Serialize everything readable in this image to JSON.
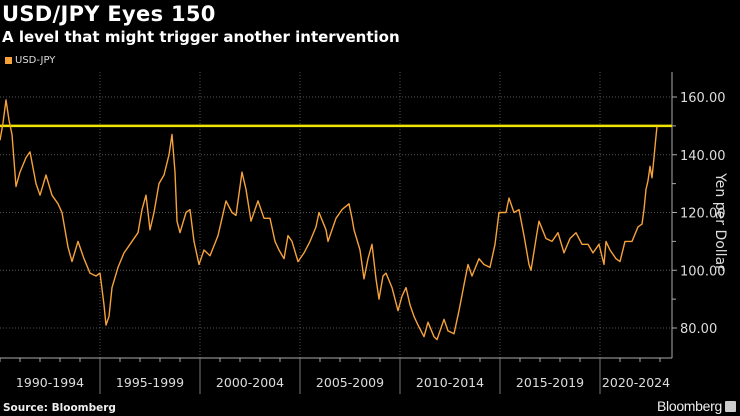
{
  "header": {
    "title": "USD/JPY Eyes 150",
    "subtitle": "A level that might trigger another intervention"
  },
  "footer": {
    "source": "Source: Bloomberg",
    "brand": "Bloomberg"
  },
  "chart_data": {
    "type": "line",
    "title": "USD/JPY Eyes 150",
    "subtitle": "A level that might trigger another intervention",
    "ylabel": "Yen per Dollar",
    "xlabel": "",
    "ylim": [
      70,
      168
    ],
    "xlim": [
      1990,
      2024
    ],
    "yticks": [
      "160.00",
      "140.00",
      "120.00",
      "100.00",
      "80.00"
    ],
    "ytick_values": [
      160,
      140,
      120,
      100,
      80
    ],
    "xtick_labels": [
      "1990-1994",
      "1995-1999",
      "2000-2004",
      "2005-2009",
      "2010-2014",
      "2015-2019",
      "2020-2024"
    ],
    "legend": {
      "position": "top-left",
      "entries": [
        "USD-JPY"
      ]
    },
    "grid": true,
    "colors": {
      "series": "#f5a23a",
      "reference": "#f0e400",
      "grid": "#555555",
      "axis": "#aaaaaa"
    },
    "reference_line": {
      "value": 150
    },
    "series": [
      {
        "name": "USD-JPY",
        "points": [
          [
            1990.0,
            145
          ],
          [
            1990.15,
            151
          ],
          [
            1990.3,
            159
          ],
          [
            1990.45,
            152
          ],
          [
            1990.6,
            147
          ],
          [
            1990.8,
            129
          ],
          [
            1991.0,
            134
          ],
          [
            1991.3,
            139
          ],
          [
            1991.5,
            141
          ],
          [
            1991.8,
            130
          ],
          [
            1992.0,
            126
          ],
          [
            1992.3,
            133
          ],
          [
            1992.6,
            126
          ],
          [
            1992.9,
            123
          ],
          [
            1993.1,
            120
          ],
          [
            1993.4,
            108
          ],
          [
            1993.6,
            103
          ],
          [
            1993.9,
            110
          ],
          [
            1994.2,
            104
          ],
          [
            1994.5,
            99
          ],
          [
            1994.8,
            98
          ],
          [
            1995.0,
            99
          ],
          [
            1995.2,
            88
          ],
          [
            1995.3,
            81
          ],
          [
            1995.45,
            84
          ],
          [
            1995.6,
            94
          ],
          [
            1995.9,
            101
          ],
          [
            1996.2,
            106
          ],
          [
            1996.5,
            109
          ],
          [
            1996.9,
            113
          ],
          [
            1997.1,
            121
          ],
          [
            1997.3,
            126
          ],
          [
            1997.5,
            114
          ],
          [
            1997.7,
            120
          ],
          [
            1997.95,
            130
          ],
          [
            1998.2,
            133
          ],
          [
            1998.45,
            140
          ],
          [
            1998.6,
            147
          ],
          [
            1998.75,
            134
          ],
          [
            1998.85,
            117
          ],
          [
            1999.0,
            113
          ],
          [
            1999.3,
            120
          ],
          [
            1999.5,
            121
          ],
          [
            1999.7,
            110
          ],
          [
            1999.95,
            102
          ],
          [
            2000.2,
            107
          ],
          [
            2000.5,
            105
          ],
          [
            2000.9,
            112
          ],
          [
            2001.1,
            118
          ],
          [
            2001.3,
            124
          ],
          [
            2001.6,
            120
          ],
          [
            2001.8,
            119
          ],
          [
            2002.1,
            134
          ],
          [
            2002.3,
            128
          ],
          [
            2002.55,
            117
          ],
          [
            2002.9,
            124
          ],
          [
            2003.2,
            118
          ],
          [
            2003.5,
            118
          ],
          [
            2003.75,
            110
          ],
          [
            2003.95,
            107
          ],
          [
            2004.2,
            104
          ],
          [
            2004.4,
            112
          ],
          [
            2004.6,
            110
          ],
          [
            2004.9,
            103
          ],
          [
            2005.2,
            106
          ],
          [
            2005.5,
            110
          ],
          [
            2005.8,
            115
          ],
          [
            2005.95,
            120
          ],
          [
            2006.3,
            114
          ],
          [
            2006.4,
            110
          ],
          [
            2006.8,
            118
          ],
          [
            2007.1,
            121
          ],
          [
            2007.45,
            123
          ],
          [
            2007.6,
            118
          ],
          [
            2007.7,
            114
          ],
          [
            2008.0,
            107
          ],
          [
            2008.2,
            97
          ],
          [
            2008.4,
            104
          ],
          [
            2008.6,
            109
          ],
          [
            2008.8,
            97
          ],
          [
            2008.95,
            90
          ],
          [
            2009.15,
            98
          ],
          [
            2009.3,
            99
          ],
          [
            2009.6,
            94
          ],
          [
            2009.9,
            86
          ],
          [
            2010.1,
            91
          ],
          [
            2010.3,
            94
          ],
          [
            2010.5,
            88
          ],
          [
            2010.7,
            84
          ],
          [
            2010.9,
            81
          ],
          [
            2011.2,
            77
          ],
          [
            2011.4,
            82
          ],
          [
            2011.7,
            77
          ],
          [
            2011.85,
            76
          ],
          [
            2012.2,
            83
          ],
          [
            2012.4,
            79
          ],
          [
            2012.7,
            78
          ],
          [
            2012.95,
            86
          ],
          [
            2013.2,
            95
          ],
          [
            2013.4,
            102
          ],
          [
            2013.6,
            98
          ],
          [
            2013.95,
            104
          ],
          [
            2014.2,
            102
          ],
          [
            2014.5,
            101
          ],
          [
            2014.75,
            109
          ],
          [
            2014.95,
            120
          ],
          [
            2015.3,
            120
          ],
          [
            2015.45,
            125
          ],
          [
            2015.7,
            120
          ],
          [
            2015.95,
            121
          ],
          [
            2016.2,
            112
          ],
          [
            2016.45,
            102
          ],
          [
            2016.55,
            100
          ],
          [
            2016.85,
            113
          ],
          [
            2016.95,
            117
          ],
          [
            2017.3,
            111
          ],
          [
            2017.6,
            110
          ],
          [
            2017.9,
            113
          ],
          [
            2018.2,
            106
          ],
          [
            2018.5,
            111
          ],
          [
            2018.8,
            113
          ],
          [
            2019.1,
            109
          ],
          [
            2019.4,
            109
          ],
          [
            2019.65,
            106
          ],
          [
            2019.95,
            109
          ],
          [
            2020.2,
            102
          ],
          [
            2020.3,
            110
          ],
          [
            2020.5,
            107
          ],
          [
            2020.8,
            104
          ],
          [
            2021.0,
            103
          ],
          [
            2021.25,
            110
          ],
          [
            2021.6,
            110
          ],
          [
            2021.9,
            115
          ],
          [
            2022.1,
            116
          ],
          [
            2022.2,
            121
          ],
          [
            2022.3,
            128
          ],
          [
            2022.4,
            131
          ],
          [
            2022.5,
            136
          ],
          [
            2022.6,
            132
          ],
          [
            2022.7,
            139
          ],
          [
            2022.78,
            145
          ],
          [
            2022.85,
            149.8
          ]
        ]
      }
    ]
  }
}
